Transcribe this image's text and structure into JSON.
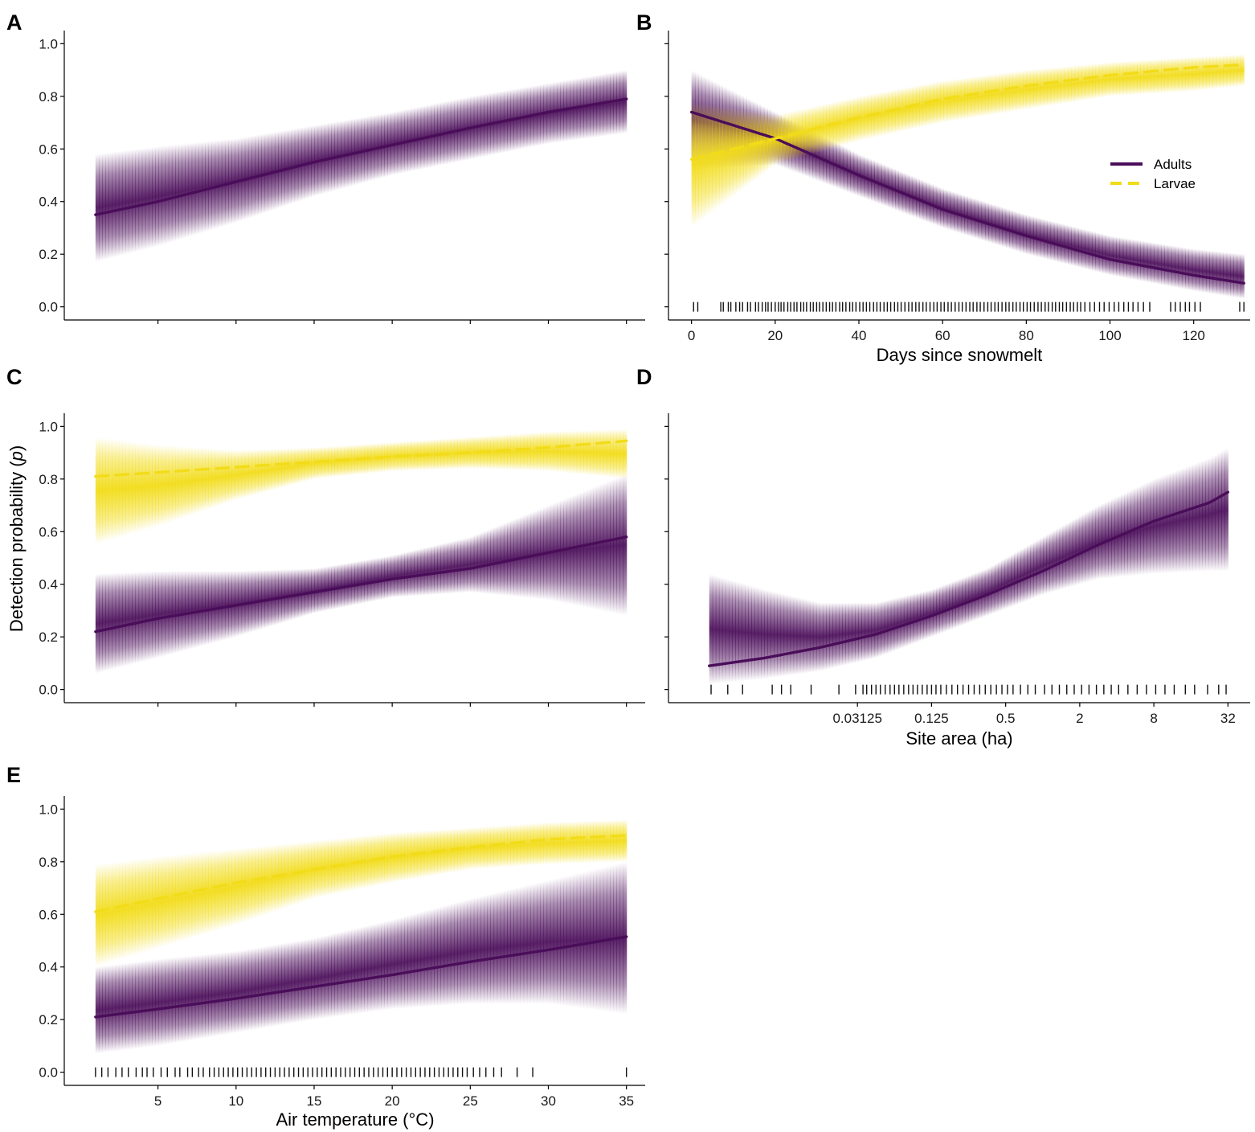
{
  "figure": {
    "ylabel_prefix": "Detection probability (",
    "ylabel_var": "p",
    "ylabel_suffix": ")",
    "colors": {
      "adults": "#4a0d59",
      "larvae": "#f2dc19",
      "axis": "#000000"
    },
    "legend": {
      "adults": "Adults",
      "larvae": "Larvae"
    }
  },
  "chart_data": [
    {
      "id": "A",
      "type": "line",
      "label": "A",
      "xlabel": "",
      "xlim": [
        -1,
        36.2
      ],
      "ylim": [
        -0.05,
        1.05
      ],
      "xticks": [
        5,
        10,
        15,
        20,
        25,
        30,
        35
      ],
      "xtick_labels": false,
      "yticks": [
        0.0,
        0.2,
        0.4,
        0.6,
        0.8,
        1.0
      ],
      "ytick_labels": [
        "0.0",
        "0.2",
        "0.4",
        "0.6",
        "0.8",
        "1.0"
      ],
      "series": [
        {
          "name": "Adults",
          "color": "#4a0d59",
          "dash": false,
          "x": [
            1,
            5,
            10,
            15,
            20,
            25,
            30,
            35
          ],
          "y": [
            0.35,
            0.4,
            0.475,
            0.55,
            0.615,
            0.68,
            0.74,
            0.79
          ],
          "lower": [
            0.17,
            0.23,
            0.32,
            0.42,
            0.5,
            0.56,
            0.62,
            0.66
          ],
          "upper": [
            0.58,
            0.61,
            0.64,
            0.69,
            0.74,
            0.8,
            0.85,
            0.9
          ]
        }
      ],
      "rug": []
    },
    {
      "id": "B",
      "type": "line",
      "label": "B",
      "xlabel": "Days since snowmelt",
      "xlim": [
        -5.5,
        133.5
      ],
      "ylim": [
        -0.05,
        1.05
      ],
      "xticks": [
        0,
        20,
        40,
        60,
        80,
        100,
        120
      ],
      "xtick_labels": [
        "0",
        "20",
        "40",
        "60",
        "80",
        "100",
        "120"
      ],
      "yticks": [
        0.0,
        0.2,
        0.4,
        0.6,
        0.8,
        1.0
      ],
      "ytick_labels": false,
      "legend": true,
      "series": [
        {
          "name": "Adults",
          "color": "#4a0d59",
          "dash": false,
          "x": [
            0,
            20,
            40,
            60,
            80,
            100,
            120,
            132
          ],
          "y": [
            0.74,
            0.64,
            0.5,
            0.37,
            0.27,
            0.18,
            0.12,
            0.09
          ],
          "lower": [
            0.52,
            0.54,
            0.42,
            0.3,
            0.2,
            0.12,
            0.06,
            0.03
          ],
          "upper": [
            0.9,
            0.74,
            0.58,
            0.45,
            0.35,
            0.27,
            0.22,
            0.2
          ]
        },
        {
          "name": "Larvae",
          "color": "#f2dc19",
          "dash": true,
          "x": [
            0,
            20,
            40,
            60,
            80,
            100,
            120,
            132
          ],
          "y": [
            0.56,
            0.64,
            0.72,
            0.79,
            0.84,
            0.88,
            0.91,
            0.92
          ],
          "lower": [
            0.3,
            0.54,
            0.63,
            0.7,
            0.75,
            0.8,
            0.82,
            0.84
          ],
          "upper": [
            0.78,
            0.73,
            0.8,
            0.86,
            0.9,
            0.93,
            0.95,
            0.96
          ]
        }
      ],
      "rug": [
        0.5,
        1.5,
        7,
        7.6,
        8.8,
        9.4,
        10.6,
        11.5,
        12.2,
        13.4,
        14.1,
        15.3,
        16,
        16.9,
        17.7,
        18.3,
        19.1,
        20,
        20.8,
        21.4,
        22.1,
        23,
        23.7,
        24.5,
        25.2,
        26.1,
        26.8,
        27.5,
        28.4,
        29.1,
        29.9,
        30.6,
        31.4,
        32.2,
        33,
        33.7,
        34.5,
        35.4,
        36.1,
        36.9,
        37.8,
        38.5,
        39.3,
        40.2,
        41,
        41.8,
        42.6,
        43.5,
        44.3,
        45.1,
        46,
        46.8,
        47.6,
        48.5,
        49.3,
        50.1,
        51,
        51.9,
        52.7,
        53.6,
        54.4,
        55.3,
        56.1,
        57,
        57.9,
        58.7,
        59.6,
        60.4,
        61.3,
        62.1,
        63,
        63.9,
        64.7,
        65.6,
        66.5,
        67.3,
        68.2,
        69,
        69.9,
        70.8,
        71.6,
        72.5,
        73.3,
        74.2,
        75.1,
        75.9,
        76.8,
        77.6,
        78.5,
        79.3,
        80.2,
        81,
        81.9,
        82.8,
        83.6,
        84.5,
        85.3,
        86.2,
        87,
        87.9,
        88.7,
        89.6,
        90.5,
        91.3,
        92.2,
        93,
        94,
        95.2,
        96.3,
        97.5,
        98.6,
        99.8,
        101,
        102.1,
        103.3,
        104.4,
        105.5,
        106.7,
        108,
        109.5,
        114.5,
        115.6,
        116.8,
        118,
        119,
        120.3,
        121.6,
        131,
        132
      ]
    },
    {
      "id": "C",
      "type": "line",
      "label": "C",
      "xlabel": "",
      "xlim": [
        -1,
        36.2
      ],
      "ylim": [
        -0.05,
        1.05
      ],
      "xticks": [
        5,
        10,
        15,
        20,
        25,
        30,
        35
      ],
      "xtick_labels": false,
      "yticks": [
        0.0,
        0.2,
        0.4,
        0.6,
        0.8,
        1.0
      ],
      "ytick_labels": [
        "0.0",
        "0.2",
        "0.4",
        "0.6",
        "0.8",
        "1.0"
      ],
      "series": [
        {
          "name": "Adults",
          "color": "#4a0d59",
          "dash": false,
          "x": [
            1,
            5,
            10,
            15,
            20,
            25,
            30,
            35
          ],
          "y": [
            0.22,
            0.27,
            0.32,
            0.37,
            0.42,
            0.46,
            0.52,
            0.58
          ],
          "lower": [
            0.06,
            0.12,
            0.2,
            0.29,
            0.35,
            0.37,
            0.34,
            0.28
          ],
          "upper": [
            0.44,
            0.45,
            0.45,
            0.46,
            0.51,
            0.58,
            0.7,
            0.82
          ]
        },
        {
          "name": "Larvae",
          "color": "#f2dc19",
          "dash": true,
          "x": [
            1,
            5,
            10,
            15,
            20,
            25,
            30,
            35
          ],
          "y": [
            0.81,
            0.825,
            0.845,
            0.865,
            0.885,
            0.9,
            0.92,
            0.945
          ],
          "lower": [
            0.55,
            0.62,
            0.72,
            0.8,
            0.83,
            0.84,
            0.83,
            0.8
          ],
          "upper": [
            0.96,
            0.93,
            0.91,
            0.92,
            0.94,
            0.96,
            0.98,
            0.99
          ]
        }
      ],
      "rug": []
    },
    {
      "id": "D",
      "type": "line",
      "label": "D",
      "xlabel": "Site area (ha)",
      "xscale": "log2",
      "xlim": [
        -10.1,
        5.6
      ],
      "ylim": [
        -0.05,
        1.05
      ],
      "xticks": [
        -5,
        -3,
        -1,
        1,
        3,
        5
      ],
      "xtick_labels": [
        "0.03125",
        "0.125",
        "0.5",
        "2",
        "8",
        "32"
      ],
      "yticks": [
        0.0,
        0.2,
        0.4,
        0.6,
        0.8,
        1.0
      ],
      "ytick_labels": false,
      "series": [
        {
          "name": "Adults",
          "color": "#4a0d59",
          "dash": false,
          "x": [
            -9,
            -7.5,
            -6,
            -4.5,
            -3,
            -1.5,
            0,
            1.5,
            3,
            4.5,
            5
          ],
          "y": [
            0.09,
            0.12,
            0.16,
            0.21,
            0.28,
            0.36,
            0.45,
            0.55,
            0.64,
            0.71,
            0.75
          ],
          "lower": [
            0.02,
            0.04,
            0.07,
            0.12,
            0.2,
            0.28,
            0.36,
            0.42,
            0.44,
            0.45,
            0.45
          ],
          "upper": [
            0.44,
            0.38,
            0.33,
            0.33,
            0.38,
            0.46,
            0.58,
            0.7,
            0.8,
            0.88,
            0.92
          ]
        }
      ],
      "rug": [
        -8.95,
        -8.5,
        -8.1,
        -7.3,
        -7.05,
        -6.8,
        -6.25,
        -5.5,
        -5.05,
        -4.85,
        -4.75,
        -4.62,
        -4.5,
        -4.38,
        -4.25,
        -4.12,
        -4,
        -3.88,
        -3.75,
        -3.62,
        -3.5,
        -3.38,
        -3.25,
        -3.12,
        -3,
        -2.88,
        -2.75,
        -2.6,
        -2.45,
        -2.3,
        -2.15,
        -2,
        -1.85,
        -1.7,
        -1.55,
        -1.4,
        -1.25,
        -1.1,
        -0.95,
        -0.8,
        -0.6,
        -0.4,
        -0.2,
        0.05,
        0.25,
        0.45,
        0.65,
        0.85,
        1.05,
        1.25,
        1.45,
        1.65,
        1.85,
        2.05,
        2.3,
        2.55,
        2.8,
        3.05,
        3.3,
        3.55,
        3.85,
        4.1,
        4.45,
        4.75,
        4.95
      ]
    },
    {
      "id": "E",
      "type": "line",
      "label": "E",
      "xlabel": "Air temperature (°C)",
      "xlim": [
        -1,
        36.2
      ],
      "ylim": [
        -0.05,
        1.05
      ],
      "xticks": [
        5,
        10,
        15,
        20,
        25,
        30,
        35
      ],
      "xtick_labels": [
        "5",
        "10",
        "15",
        "20",
        "25",
        "30",
        "35"
      ],
      "yticks": [
        0.0,
        0.2,
        0.4,
        0.6,
        0.8,
        1.0
      ],
      "ytick_labels": [
        "0.0",
        "0.2",
        "0.4",
        "0.6",
        "0.8",
        "1.0"
      ],
      "series": [
        {
          "name": "Adults",
          "color": "#4a0d59",
          "dash": false,
          "x": [
            1,
            5,
            10,
            15,
            20,
            25,
            30,
            35
          ],
          "y": [
            0.21,
            0.24,
            0.28,
            0.325,
            0.37,
            0.42,
            0.465,
            0.515
          ],
          "lower": [
            0.07,
            0.1,
            0.15,
            0.2,
            0.24,
            0.26,
            0.26,
            0.22
          ],
          "upper": [
            0.4,
            0.43,
            0.46,
            0.51,
            0.58,
            0.66,
            0.73,
            0.8
          ]
        },
        {
          "name": "Larvae",
          "color": "#f2dc19",
          "dash": true,
          "x": [
            1,
            5,
            10,
            15,
            20,
            25,
            30,
            35
          ],
          "y": [
            0.61,
            0.66,
            0.72,
            0.77,
            0.82,
            0.855,
            0.885,
            0.9
          ],
          "lower": [
            0.4,
            0.47,
            0.56,
            0.66,
            0.72,
            0.77,
            0.79,
            0.8
          ],
          "upper": [
            0.79,
            0.82,
            0.85,
            0.88,
            0.91,
            0.93,
            0.95,
            0.96
          ]
        }
      ],
      "rug": [
        1,
        1.4,
        1.8,
        2.3,
        2.7,
        3.1,
        3.6,
        4,
        4.3,
        4.7,
        5.2,
        5.6,
        6.1,
        6.4,
        6.9,
        7.2,
        7.6,
        7.9,
        8.3,
        8.6,
        8.9,
        9.2,
        9.5,
        9.8,
        10.1,
        10.4,
        10.7,
        11,
        11.3,
        11.6,
        11.9,
        12.2,
        12.5,
        12.8,
        13.1,
        13.4,
        13.7,
        14,
        14.3,
        14.6,
        14.9,
        15.2,
        15.5,
        15.8,
        16.1,
        16.4,
        16.7,
        17,
        17.3,
        17.6,
        17.9,
        18.2,
        18.5,
        18.8,
        19.1,
        19.4,
        19.7,
        20,
        20.3,
        20.6,
        20.9,
        21.2,
        21.5,
        21.8,
        22.1,
        22.4,
        22.7,
        23,
        23.3,
        23.6,
        23.9,
        24.2,
        24.5,
        24.8,
        25.2,
        25.6,
        26,
        26.5,
        27,
        28,
        29,
        35
      ]
    }
  ]
}
